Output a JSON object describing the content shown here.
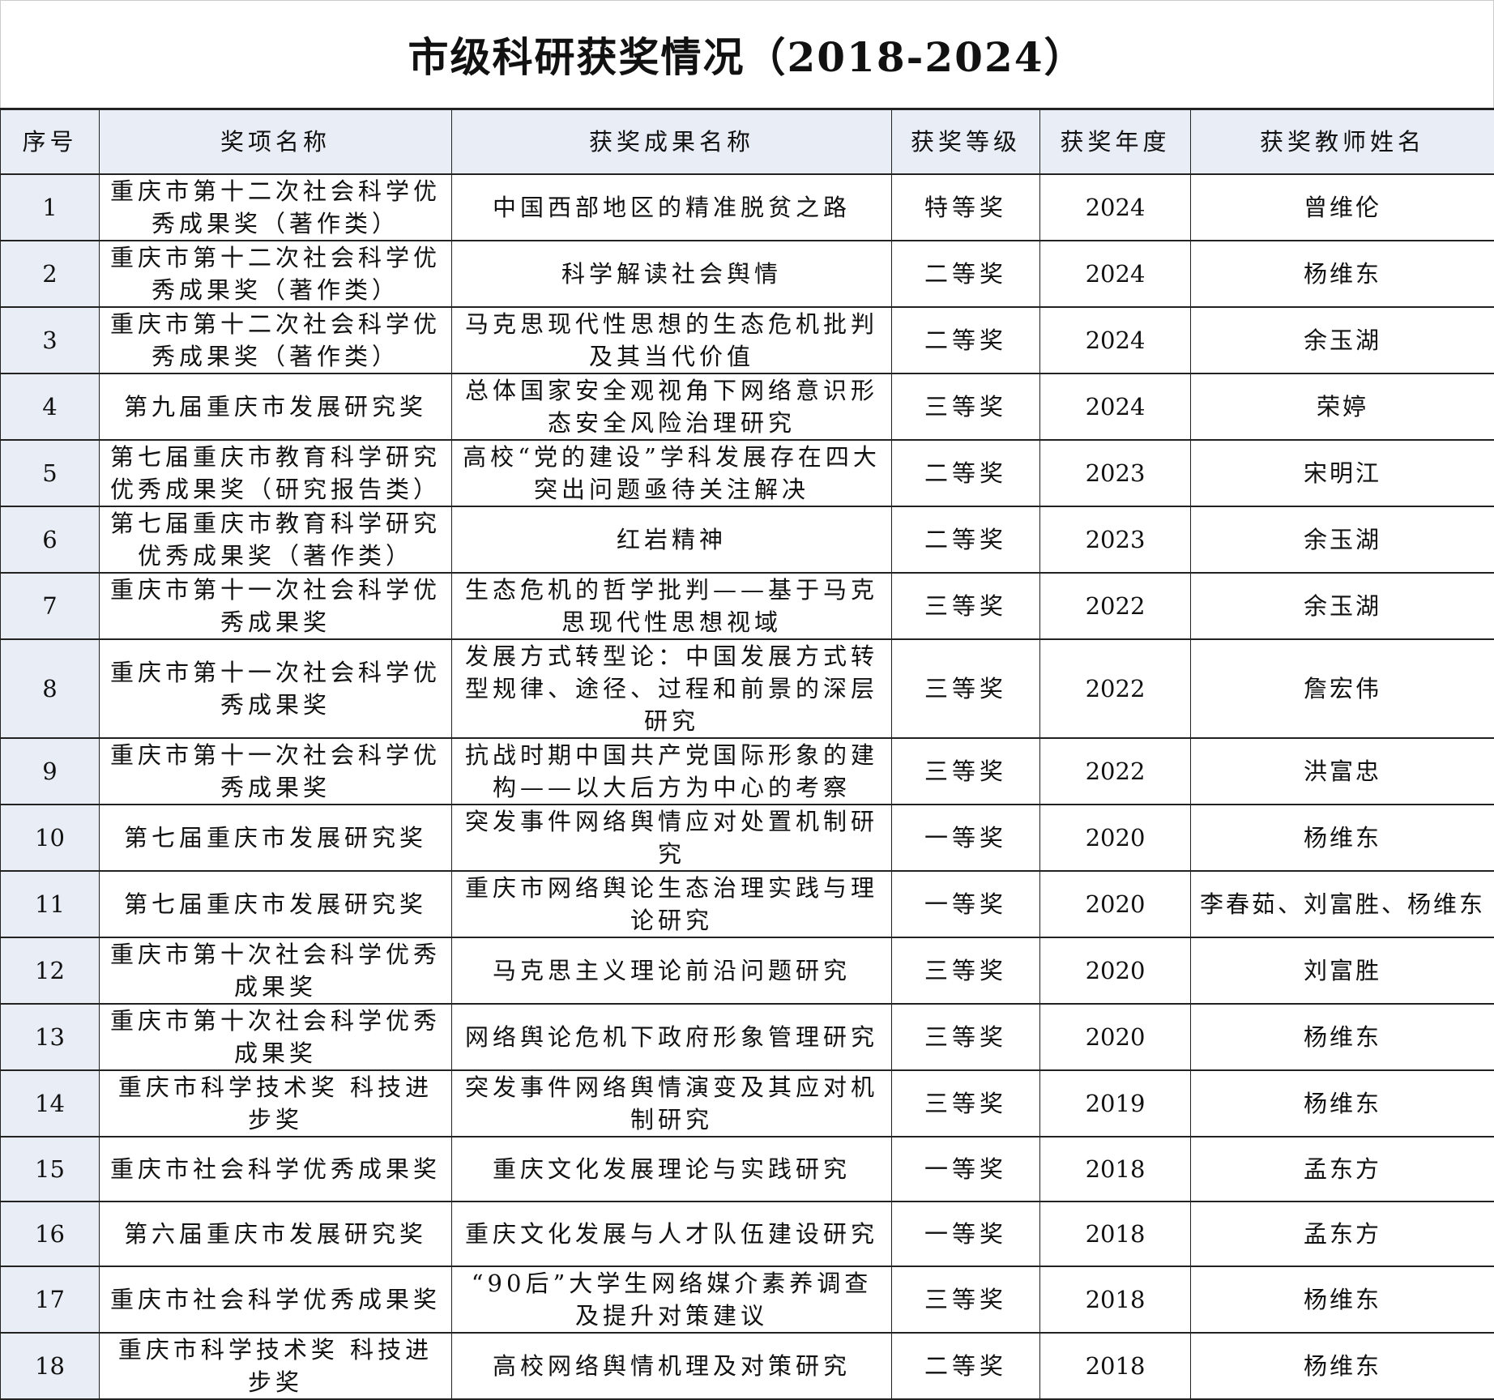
{
  "title": "市级科研获奖情况（2018-2024）",
  "table": {
    "headers": [
      "序号",
      "奖项名称",
      "获奖成果名称",
      "获奖等级",
      "获奖年度",
      "获奖教师姓名"
    ],
    "rows": [
      {
        "no": "1",
        "award": "重庆市第十二次社会科学优秀成果奖（著作类）",
        "work": "中国西部地区的精准脱贫之路",
        "level": "特等奖",
        "year": "2024",
        "teacher": "曾维伦"
      },
      {
        "no": "2",
        "award": "重庆市第十二次社会科学优秀成果奖（著作类）",
        "work": "科学解读社会舆情",
        "level": "二等奖",
        "year": "2024",
        "teacher": "杨维东"
      },
      {
        "no": "3",
        "award": "重庆市第十二次社会科学优秀成果奖（著作类）",
        "work": "马克思现代性思想的生态危机批判及其当代价值",
        "level": "二等奖",
        "year": "2024",
        "teacher": "余玉湖"
      },
      {
        "no": "4",
        "award": "第九届重庆市发展研究奖",
        "work": "总体国家安全观视角下网络意识形态安全风险治理研究",
        "level": "三等奖",
        "year": "2024",
        "teacher": "荣婷"
      },
      {
        "no": "5",
        "award": "第七届重庆市教育科学研究优秀成果奖（研究报告类）",
        "work": "高校“党的建设”学科发展存在四大突出问题亟待关注解决",
        "level": "二等奖",
        "year": "2023",
        "teacher": "宋明江"
      },
      {
        "no": "6",
        "award": "第七届重庆市教育科学研究优秀成果奖（著作类）",
        "work": "红岩精神",
        "level": "二等奖",
        "year": "2023",
        "teacher": "余玉湖"
      },
      {
        "no": "7",
        "award": "重庆市第十一次社会科学优秀成果奖",
        "work": "生态危机的哲学批判——基于马克思现代性思想视域",
        "level": "三等奖",
        "year": "2022",
        "teacher": "余玉湖"
      },
      {
        "no": "8",
        "award": "重庆市第十一次社会科学优秀成果奖",
        "work": "发展方式转型论：中国发展方式转型规律、途径、过程和前景的深层研究",
        "level": "三等奖",
        "year": "2022",
        "teacher": "詹宏伟"
      },
      {
        "no": "9",
        "award": "重庆市第十一次社会科学优秀成果奖",
        "work": "抗战时期中国共产党国际形象的建构——以大后方为中心的考察",
        "level": "三等奖",
        "year": "2022",
        "teacher": "洪富忠"
      },
      {
        "no": "10",
        "award": "第七届重庆市发展研究奖",
        "work": "突发事件网络舆情应对处置机制研究",
        "level": "一等奖",
        "year": "2020",
        "teacher": "杨维东"
      },
      {
        "no": "11",
        "award": "第七届重庆市发展研究奖",
        "work": "重庆市网络舆论生态治理实践与理论研究",
        "level": "一等奖",
        "year": "2020",
        "teacher": "李春茹、刘富胜、杨维东"
      },
      {
        "no": "12",
        "award": "重庆市第十次社会科学优秀成果奖",
        "work": "马克思主义理论前沿问题研究",
        "level": "三等奖",
        "year": "2020",
        "teacher": "刘富胜"
      },
      {
        "no": "13",
        "award": "重庆市第十次社会科学优秀成果奖",
        "work": "网络舆论危机下政府形象管理研究",
        "level": "三等奖",
        "year": "2020",
        "teacher": "杨维东"
      },
      {
        "no": "14",
        "award": "重庆市科学技术奖 科技进步奖",
        "work": "突发事件网络舆情演变及其应对机制研究",
        "level": "三等奖",
        "year": "2019",
        "teacher": "杨维东"
      },
      {
        "no": "15",
        "award": "重庆市社会科学优秀成果奖",
        "work": "重庆文化发展理论与实践研究",
        "level": "一等奖",
        "year": "2018",
        "teacher": "孟东方"
      },
      {
        "no": "16",
        "award": "第六届重庆市发展研究奖",
        "work": "重庆文化发展与人才队伍建设研究",
        "level": "一等奖",
        "year": "2018",
        "teacher": "孟东方"
      },
      {
        "no": "17",
        "award": "重庆市社会科学优秀成果奖",
        "work": "“90后”大学生网络媒介素养调查及提升对策建议",
        "level": "三等奖",
        "year": "2018",
        "teacher": "杨维东"
      },
      {
        "no": "18",
        "award": "重庆市科学技术奖 科技进步奖",
        "work": "高校网络舆情机理及对策研究",
        "level": "二等奖",
        "year": "2018",
        "teacher": "杨维东"
      }
    ]
  }
}
